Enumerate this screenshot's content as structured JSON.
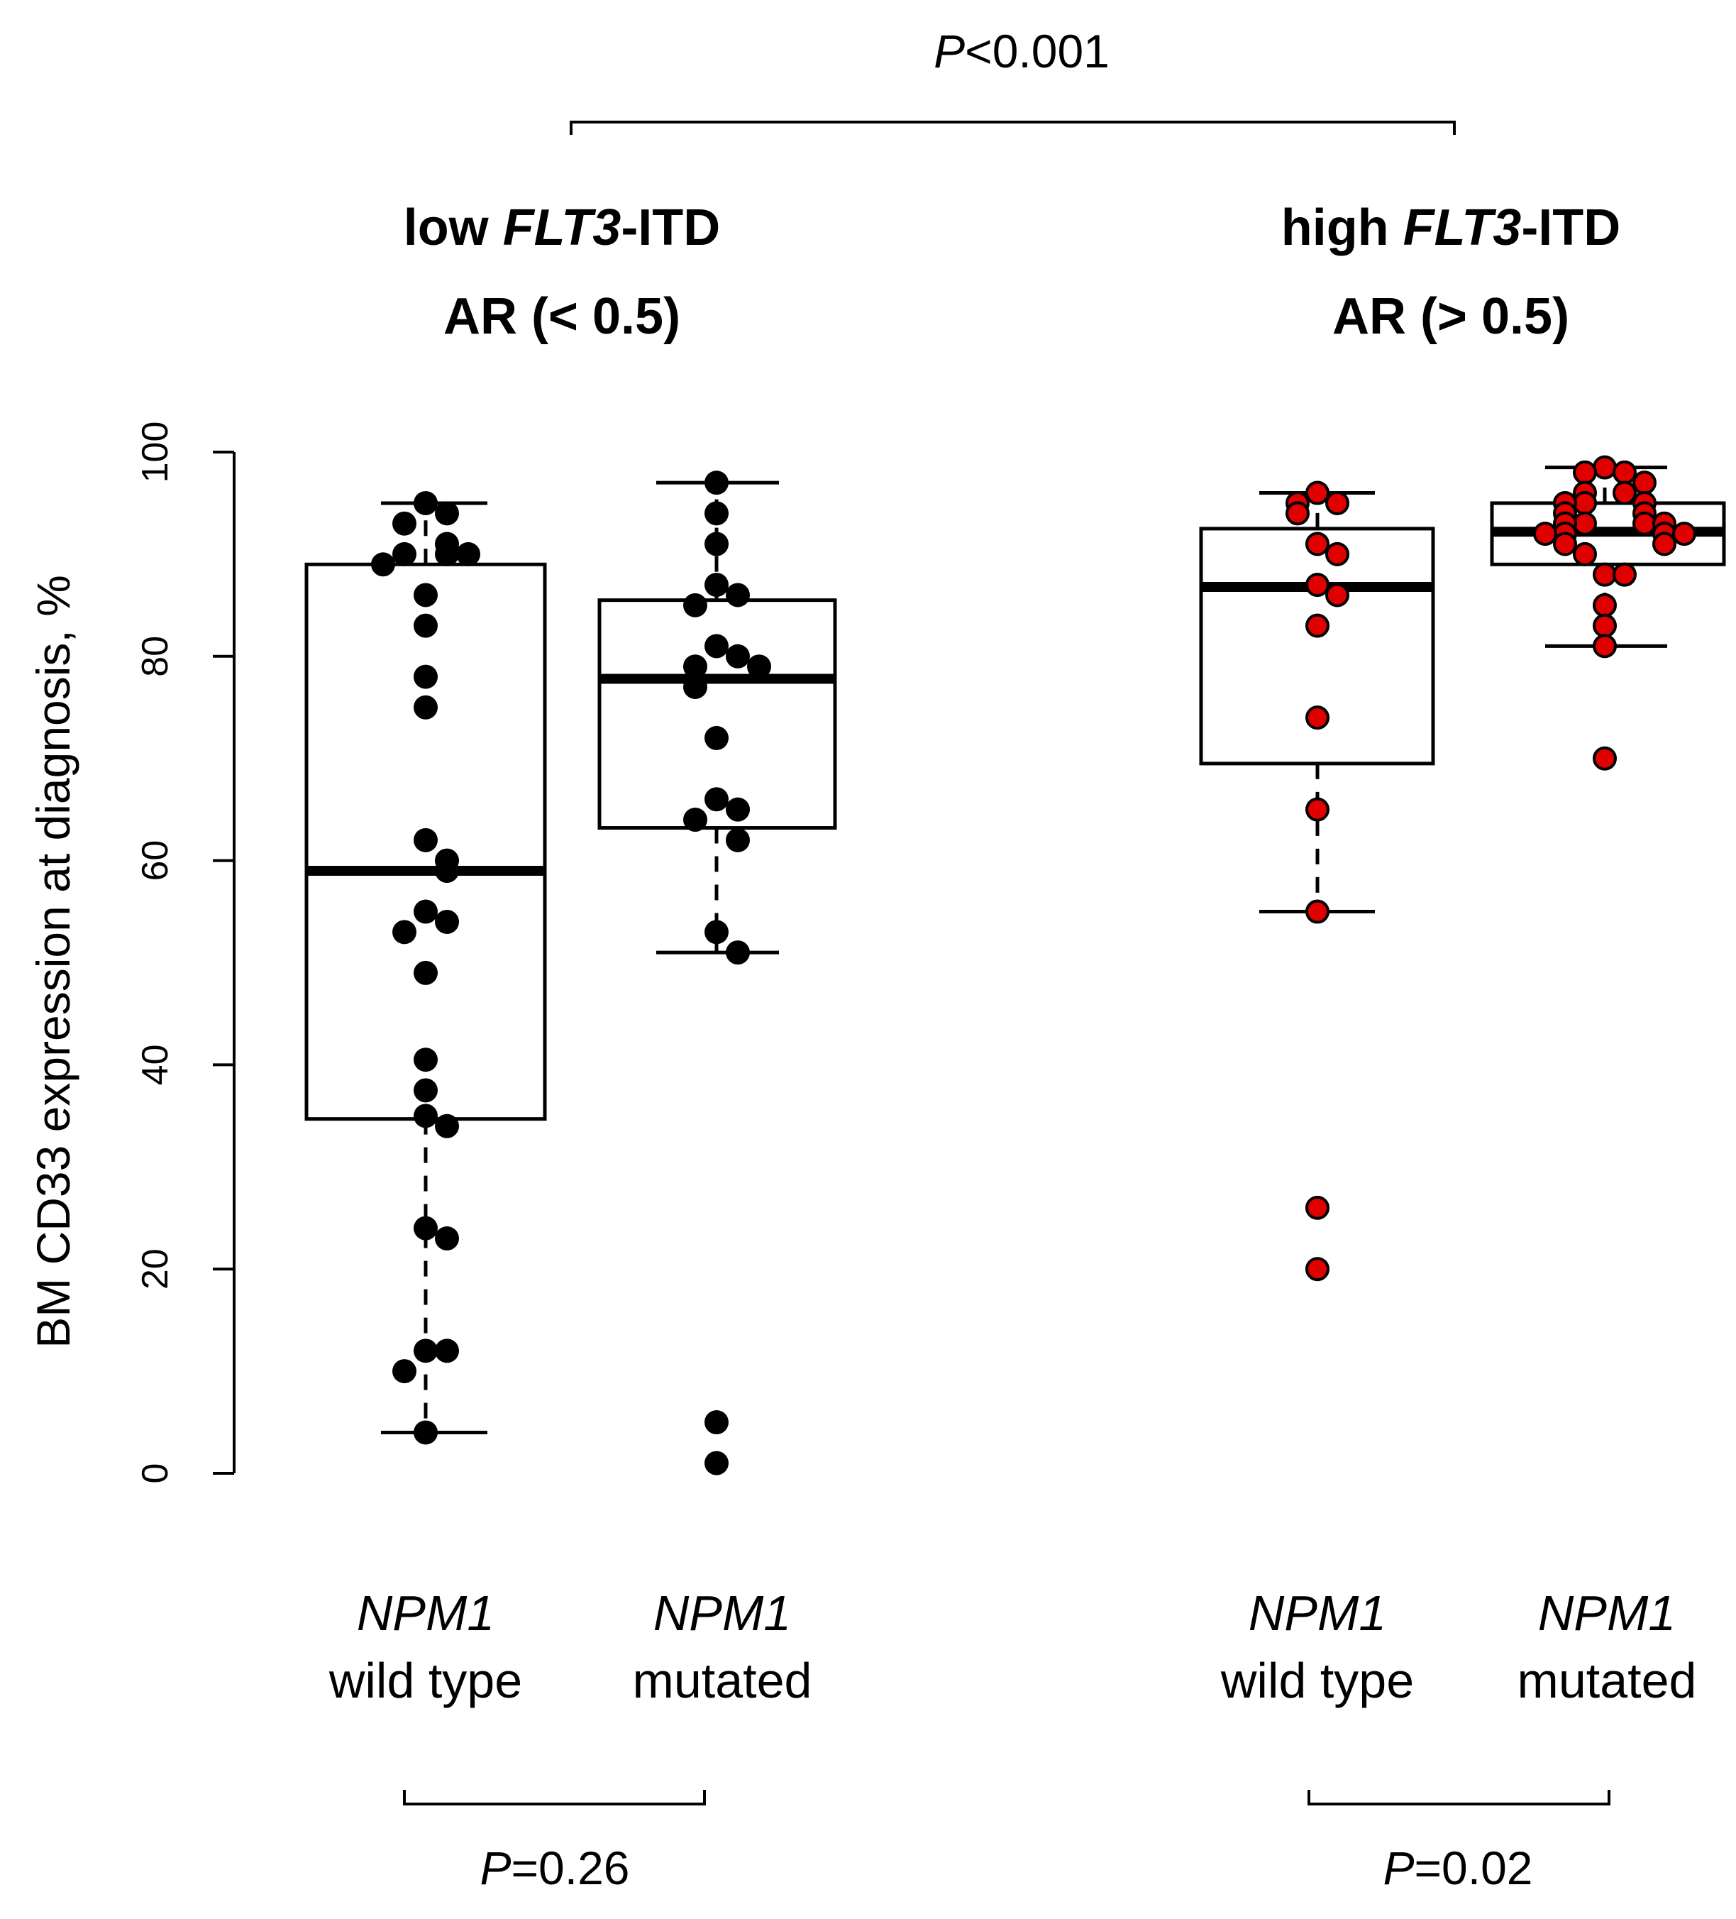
{
  "chart_data": {
    "type": "box",
    "ylabel": "BM CD33 expression at diagnosis, %",
    "ylim": [
      0,
      100
    ],
    "yticks": [
      0,
      20,
      40,
      60,
      80,
      100
    ],
    "groups": [
      {
        "line1_prefix": "low ",
        "line1_italic": "FLT3",
        "line1_suffix": "-ITD",
        "line2": "AR (< 0.5)",
        "within_p_italic": "P",
        "within_p_rest": "=0.26",
        "boxes": [
          {
            "cat_italic": "NPM1",
            "cat_rest": "wild type",
            "color": "#000000",
            "whisker_low": 4,
            "q1": 34.7,
            "median": 59,
            "q3": 89,
            "whisker_high": 95,
            "points": [
              95,
              94,
              93,
              91,
              90,
              90,
              90,
              89,
              86,
              83,
              78,
              75,
              62,
              60,
              59,
              55,
              54,
              53,
              49,
              40.5,
              37.5,
              35,
              34,
              24,
              23,
              12,
              12,
              10,
              4
            ]
          },
          {
            "cat_italic": "NPM1",
            "cat_rest": "mutated",
            "color": "#000000",
            "whisker_low": 51,
            "q1": 63.2,
            "median": 77.8,
            "q3": 85.5,
            "whisker_high": 97,
            "points": [
              97,
              94,
              91,
              87,
              86,
              85,
              81,
              80,
              79,
              79,
              77,
              72,
              66,
              65,
              64,
              62,
              53,
              51,
              5,
              1
            ]
          }
        ]
      },
      {
        "line1_prefix": "high ",
        "line1_italic": "FLT3",
        "line1_suffix": "-ITD",
        "line2": "AR (> 0.5)",
        "within_p_italic": "P",
        "within_p_rest": "=0.02",
        "boxes": [
          {
            "cat_italic": "NPM1",
            "cat_rest": "wild type",
            "color": "#e00000",
            "whisker_low": 55,
            "q1": 69.5,
            "median": 86.8,
            "q3": 92.5,
            "whisker_high": 96,
            "points": [
              96,
              95,
              95,
              94,
              91,
              90,
              87,
              86,
              83,
              74,
              65,
              55,
              26,
              20
            ]
          },
          {
            "cat_italic": "NPM1",
            "cat_rest": "mutated",
            "color": "#e00000",
            "whisker_low": 81,
            "q1": 89,
            "median": 92.2,
            "q3": 95,
            "whisker_high": 98.5,
            "points": [
              98.5,
              98,
              98,
              97,
              96,
              96,
              95,
              95,
              95,
              94,
              94,
              93,
              93,
              93,
              93,
              92,
              92,
              92,
              92,
              91,
              91,
              90,
              88,
              88,
              85,
              83,
              81,
              70
            ]
          }
        ]
      }
    ],
    "overall_p_italic": "P",
    "overall_p_rest": "<0.001"
  }
}
